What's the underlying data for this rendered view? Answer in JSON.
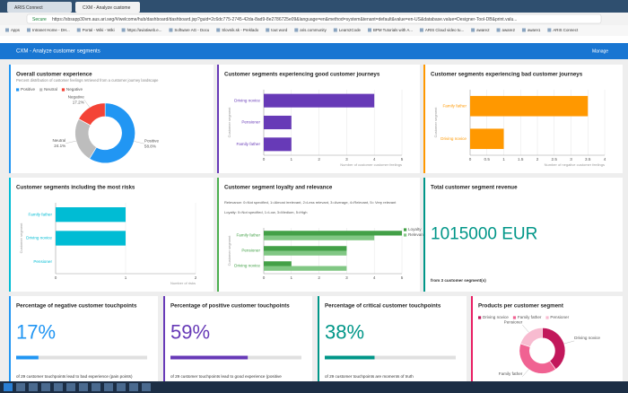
{
  "browser": {
    "tabs": [
      "ARIS Connect",
      "CXM - Analyze custome"
    ],
    "secure": "Secure",
    "url": "https://sbsapp30vm.aus.ari.seg/#/welcome/hub/dashboard/dashboard.jsp?guid=2c6dc775-2745-42da-8ad9-8e2786725e09&language=en&method=system&tenant=default&value=en-US&database.value=Designer-Tool-DB&print.valu...",
    "bookmarks": [
      "Apps",
      "Intranet Home - DH...",
      "Portal - Wiki - Wiki",
      "https://aviatiweb.e...",
      "Software AG - Docu",
      "Slovnik.sk - Preklado",
      "tout word",
      "aris.community",
      "Learn2Code",
      "BPM Tutorials with A...",
      "ARIS Cloud video tu...",
      "aware2",
      "aware2",
      "aware1",
      "ARIS Connect"
    ]
  },
  "app": {
    "title": "CXM - Analyze customer segments",
    "manage": "Manage"
  },
  "widgets": [
    {
      "title": "Overall customer experience",
      "subtitle": "Percent distribution of customer feelings retrieved from a customer journey landscape",
      "color": "#2196f3",
      "chart": {
        "type": "pie",
        "categories": [
          "Positive",
          "Neutral",
          "Negative"
        ],
        "values": [
          58.8,
          24.1,
          17.2
        ],
        "value_labels": [
          "58.8%",
          "24.1%",
          "17.2%"
        ],
        "colors": [
          "#2196f3",
          "#bdbdbd",
          "#f44336"
        ],
        "legend": "top-left"
      }
    },
    {
      "title": "Customer segments experiencing good customer journeys",
      "color": "#673ab7",
      "chart": {
        "type": "hbar",
        "categories": [
          "Driving novice",
          "Pensioner",
          "Family father"
        ],
        "series": [
          {
            "color": "#673ab7",
            "values": [
              4,
              1,
              1
            ]
          }
        ],
        "xlim": [
          0,
          5
        ],
        "xticks": [
          0,
          1,
          2,
          3,
          4,
          5
        ],
        "xlabel": "Number of customer customer feelings",
        "ylabel": "Customer segment",
        "grid": true
      }
    },
    {
      "title": "Customer segments experiencing bad customer journeys",
      "color": "#ff9800",
      "chart": {
        "type": "hbar",
        "categories": [
          "Family father",
          "Driving novice"
        ],
        "series": [
          {
            "color": "#ff9800",
            "values": [
              3.5,
              1
            ]
          }
        ],
        "xlim": [
          0,
          4
        ],
        "xticks": [
          0,
          0.5,
          1,
          1.5,
          2,
          2.5,
          3,
          3.5,
          4
        ],
        "xlabel": "Number of negative customer feelings",
        "ylabel": "Customer segment",
        "grid": true
      }
    },
    {
      "title": "Customer segments including the most risks",
      "color": "#00bcd4",
      "chart": {
        "type": "hbar",
        "categories": [
          "Family father",
          "Driving novice",
          "Pensioner"
        ],
        "series": [
          {
            "color": "#00bcd4",
            "values": [
              1,
              1,
              0
            ]
          }
        ],
        "xlim": [
          0,
          2
        ],
        "xticks": [
          0,
          1,
          2
        ],
        "xlabel": "Number of risks",
        "ylabel": "Customer segment",
        "grid": true
      }
    },
    {
      "title": "Customer segment loyalty and relevance",
      "color": "#4caf50",
      "notes": [
        "Relevance: 0=Not specified, 1=Almost irrelevant, 2=Less relevant, 3=Average, 4=Relevant, 5= Very relevant",
        "Loyalty: 0=Not specified, 1=Low, 3=Medium, 5=High"
      ],
      "chart": {
        "type": "hbar",
        "categories": [
          "Family father",
          "Pensioner",
          "Driving novice"
        ],
        "series": [
          {
            "name": "Loyalty",
            "color": "#43a047",
            "values": [
              5,
              3,
              1
            ]
          },
          {
            "name": "Relevance",
            "color": "#81c784",
            "values": [
              4,
              3,
              3
            ]
          }
        ],
        "xlim": [
          0,
          5
        ],
        "xticks": [
          0,
          1,
          2,
          3,
          4,
          5
        ],
        "ylabel": "Customer segment",
        "grid": true,
        "legend": "top-right"
      }
    },
    {
      "title": "Total customer segment revenue",
      "color": "#009688",
      "kpi_text": "1015000 EUR",
      "footnote": "from 3 customer segment(s)"
    },
    {
      "title": "Percentage of negative customer touchpoints",
      "color": "#2196f3",
      "chart": {
        "type": "progress",
        "value": 17,
        "value_label": "17%",
        "xlim": [
          0,
          100
        ]
      },
      "footnote": "of 29 customer touchpoints lead to bad experience (pain points)"
    },
    {
      "title": "Percentage of positive customer touchpoints",
      "color": "#673ab7",
      "chart": {
        "type": "progress",
        "value": 59,
        "value_label": "59%",
        "xlim": [
          0,
          100
        ]
      },
      "footnote": "of 29 customer touchpoints lead to good experience (positive"
    },
    {
      "title": "Percentage of critical customer touchpoints",
      "color": "#009688",
      "chart": {
        "type": "progress",
        "value": 38,
        "value_label": "38%",
        "xlim": [
          0,
          100
        ]
      },
      "footnote": "of 29 customer touchpoints are moments of truth"
    },
    {
      "title": "Products per customer segment",
      "color": "#e91e63",
      "chart": {
        "type": "pie",
        "categories": [
          "Driving novice",
          "Family father",
          "Pensioner"
        ],
        "values": [
          2,
          2,
          1
        ],
        "colors": [
          "#c2185b",
          "#f06292",
          "#f8bbd0"
        ],
        "legend": "top-left"
      }
    }
  ]
}
